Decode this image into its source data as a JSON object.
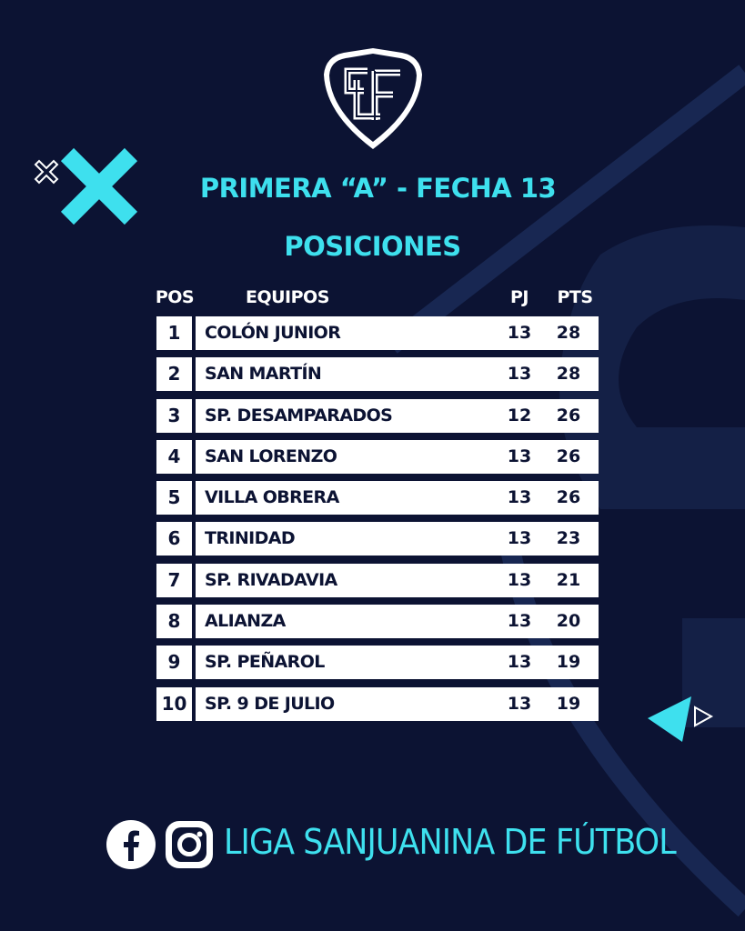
{
  "header": {
    "title": "PRIMERA “A” - FECHA 13",
    "subtitle": "POSICIONES"
  },
  "table": {
    "columns": {
      "pos": "POS",
      "team": "EQUIPOS",
      "pj": "PJ",
      "pts": "PTS"
    },
    "rows": [
      {
        "pos": "1",
        "team": "COLÓN JUNIOR",
        "pj": "13",
        "pts": "28"
      },
      {
        "pos": "2",
        "team": "SAN MARTÍN",
        "pj": "13",
        "pts": "28"
      },
      {
        "pos": "3",
        "team": "SP. DESAMPARADOS",
        "pj": "12",
        "pts": "26"
      },
      {
        "pos": "4",
        "team": "SAN LORENZO",
        "pj": "13",
        "pts": "26"
      },
      {
        "pos": "5",
        "team": "VILLA OBRERA",
        "pj": "13",
        "pts": "26"
      },
      {
        "pos": "6",
        "team": "TRINIDAD",
        "pj": "13",
        "pts": "23"
      },
      {
        "pos": "7",
        "team": "SP. RIVADAVIA",
        "pj": "13",
        "pts": "21"
      },
      {
        "pos": "8",
        "team": "ALIANZA",
        "pj": "13",
        "pts": "20"
      },
      {
        "pos": "9",
        "team": "SP. PEÑAROL",
        "pj": "13",
        "pts": "19"
      },
      {
        "pos": "10",
        "team": "SP. 9 DE JULIO",
        "pj": "13",
        "pts": "19"
      }
    ]
  },
  "footer": {
    "text": "LIGA SANJUANINA DE FÚTBOL",
    "icons": [
      "facebook-icon",
      "instagram-icon"
    ]
  },
  "logo_text": "LSF",
  "colors": {
    "background": "#0c1333",
    "accent": "#3ee0ee",
    "text": "#ffffff"
  }
}
